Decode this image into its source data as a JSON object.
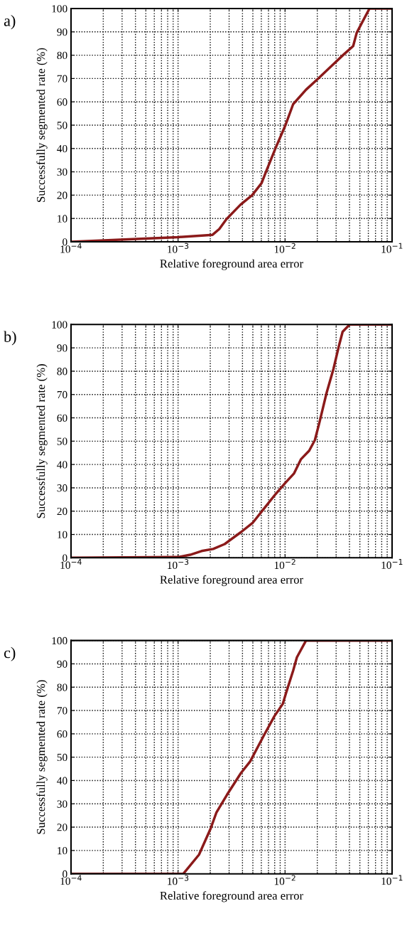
{
  "chart_data": [
    {
      "type": "line",
      "title": "a)",
      "xlabel": "Relative foreground area error",
      "ylabel": "Successfully segmented rate (%)",
      "log": "x",
      "grid": true,
      "line_style": "solid",
      "marker": "none",
      "xlim": [
        0.0001,
        0.1
      ],
      "ylim": [
        0,
        100
      ],
      "xticks": [
        {
          "value": 0.0001,
          "label": "10$^{−4}$"
        },
        {
          "value": 0.001,
          "label": "10$^{−3}$"
        },
        {
          "value": 0.01,
          "label": "10$^{−2}$"
        },
        {
          "value": 0.1,
          "label": "10$^{−1}$"
        }
      ],
      "yticks": [
        0,
        10,
        20,
        30,
        40,
        50,
        60,
        70,
        80,
        90,
        100
      ],
      "series": [
        {
          "color": "#8b1a1a",
          "x": [
            0.0001,
            0.001,
            0.0021,
            0.00243,
            0.00283,
            0.00383,
            0.00493,
            0.00604,
            0.00668,
            0.00817,
            0.01,
            0.0119,
            0.0157,
            0.0203,
            0.0275,
            0.0353,
            0.0433,
            0.0467,
            0.0615,
            0.1
          ],
          "values": [
            0,
            2,
            3,
            5.5,
            9.7,
            15.9,
            20,
            25.2,
            30.4,
            40.3,
            49.6,
            59,
            65.2,
            69.9,
            75.6,
            80.3,
            83.9,
            89.6,
            100,
            100
          ]
        }
      ]
    },
    {
      "type": "line",
      "title": "b)",
      "xlabel": "Relative foreground area error",
      "ylabel": "Successfully segmented rate (%)",
      "log": "x",
      "grid": true,
      "line_style": "solid",
      "marker": "none",
      "xlim": [
        0.0001,
        0.1
      ],
      "ylim": [
        0,
        100
      ],
      "xticks": [
        {
          "value": 0.0001,
          "label": "10$^{−4}$"
        },
        {
          "value": 0.001,
          "label": "10$^{−3}$"
        },
        {
          "value": 0.01,
          "label": "10$^{−2}$"
        },
        {
          "value": 0.1,
          "label": "10$^{−1}$"
        }
      ],
      "yticks": [
        0,
        10,
        20,
        30,
        40,
        50,
        60,
        70,
        80,
        90,
        100
      ],
      "series": [
        {
          "color": "#8b1a1a",
          "x": [
            0.0001,
            0.001,
            0.0013,
            0.00166,
            0.00213,
            0.00273,
            0.00387,
            0.00496,
            0.00636,
            0.00815,
            0.01,
            0.0121,
            0.0141,
            0.0168,
            0.019,
            0.021,
            0.0244,
            0.0283,
            0.032,
            0.0345,
            0.0401,
            0.1
          ],
          "values": [
            0,
            0.3,
            1.3,
            2.9,
            3.8,
            5.9,
            11,
            14.9,
            21.1,
            27.3,
            32,
            36.1,
            42.3,
            45.9,
            50.5,
            58.2,
            70.6,
            80.9,
            91.2,
            96.9,
            100,
            100
          ]
        }
      ]
    },
    {
      "type": "line",
      "title": "c)",
      "xlabel": "Relative foreground area error",
      "ylabel": "Successfully segmented rate (%)",
      "log": "x",
      "grid": true,
      "line_style": "solid",
      "marker": "none",
      "xlim": [
        0.0001,
        0.1
      ],
      "ylim": [
        0,
        100
      ],
      "xticks": [
        {
          "value": 0.0001,
          "label": "10$^{−4}$"
        },
        {
          "value": 0.001,
          "label": "10$^{−3}$"
        },
        {
          "value": 0.01,
          "label": "10$^{−2}$"
        },
        {
          "value": 0.1,
          "label": "10$^{−1}$"
        }
      ],
      "yticks": [
        0,
        10,
        20,
        30,
        40,
        50,
        60,
        70,
        80,
        90,
        100
      ],
      "series": [
        {
          "color": "#8b1a1a",
          "x": [
            0.0001,
            0.00112,
            0.00157,
            0.00202,
            0.00228,
            0.00286,
            0.00386,
            0.00472,
            0.00637,
            0.00798,
            0.00951,
            0.0102,
            0.0119,
            0.0129,
            0.0157,
            0.1
          ],
          "values": [
            0,
            0,
            8.2,
            19.5,
            26.2,
            33.8,
            43.1,
            48.2,
            59.5,
            67.7,
            72.8,
            77.4,
            87.1,
            92.8,
            100,
            100
          ]
        }
      ]
    }
  ]
}
